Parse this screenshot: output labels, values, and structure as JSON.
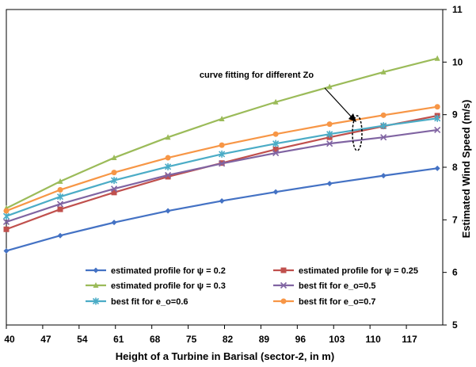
{
  "chart_data": {
    "type": "line",
    "title": "",
    "xlabel": "Height of a Turbine in Barisal (sector-2, in m)",
    "ylabel": "Estimated Wind Speed (m/s)",
    "x_ticks": [
      "40",
      "47",
      "54",
      "61",
      "68",
      "75",
      "82",
      "89",
      "96",
      "103",
      "110",
      "117"
    ],
    "x": [
      40,
      50,
      60,
      70,
      80,
      90,
      100,
      110,
      120
    ],
    "xlim": [
      40,
      121
    ],
    "ylim": [
      5,
      11
    ],
    "y_ticks": [
      5,
      6,
      7,
      8,
      9,
      10,
      11
    ],
    "y_axis_side": "right",
    "grid": false,
    "legend_position": "bottom-inside",
    "annotation": "curve fitting for different Zo",
    "series": [
      {
        "name": "estimated profile for ψ = 0.2",
        "color": "#4472C4",
        "marker": "diamond",
        "values": [
          6.41,
          6.7,
          6.95,
          7.17,
          7.36,
          7.53,
          7.69,
          7.84,
          7.98
        ]
      },
      {
        "name": "estimated profile for ψ = 0.25",
        "color": "#C0504D",
        "marker": "square",
        "values": [
          6.82,
          7.2,
          7.52,
          7.82,
          8.08,
          8.34,
          8.57,
          8.78,
          8.98
        ]
      },
      {
        "name": "estimated profile for ψ = 0.3",
        "color": "#9BBB59",
        "marker": "triangle",
        "values": [
          7.22,
          7.73,
          8.18,
          8.57,
          8.92,
          9.24,
          9.53,
          9.81,
          10.07
        ]
      },
      {
        "name": "best fit for e_o=0.5",
        "color": "#8064A2",
        "marker": "x",
        "values": [
          6.96,
          7.3,
          7.59,
          7.85,
          8.07,
          8.27,
          8.45,
          8.57,
          8.71
        ]
      },
      {
        "name": "best fit for e_o=0.6",
        "color": "#4BACC6",
        "marker": "star",
        "values": [
          7.07,
          7.44,
          7.75,
          8.01,
          8.25,
          8.45,
          8.63,
          8.79,
          8.93
        ]
      },
      {
        "name": "best fit for e_o=0.7",
        "color": "#F79646",
        "marker": "circle",
        "values": [
          7.17,
          7.57,
          7.9,
          8.18,
          8.42,
          8.63,
          8.82,
          8.99,
          9.15
        ]
      }
    ]
  }
}
